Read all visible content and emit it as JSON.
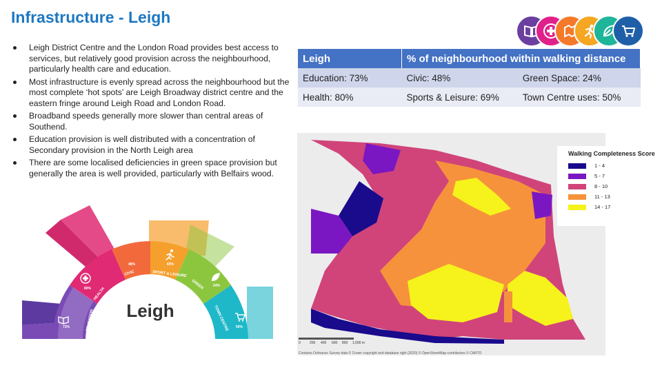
{
  "page": {
    "title": "Infrastructure - Leigh"
  },
  "bullets": [
    "Leigh District Centre and the London Road provides best access to services, but relatively good provision across the neighbourhood, particularly health care and education.",
    "Most infrastructure is evenly spread across the neighbourhood but the most complete ‘hot spots’ are Leigh Broadway district centre and the eastern fringe around Leigh Road and London Road.",
    "Broadband speeds generally more slower than central areas of Southend.",
    "Education provision is well distributed with a concentration of Secondary provision in the North Leigh area",
    "There are some localised deficiencies in green space provision but generally the area is well provided, particularly with Belfairs wood."
  ],
  "icons": [
    {
      "name": "book-icon",
      "color": "#6b3fa0"
    },
    {
      "name": "health-cross-icon",
      "color": "#e0218a"
    },
    {
      "name": "civic-map-icon",
      "color": "#f47a2a"
    },
    {
      "name": "runner-icon",
      "color": "#f5a623"
    },
    {
      "name": "leaf-icon",
      "color": "#1fb59a"
    },
    {
      "name": "cart-icon",
      "color": "#1f5fa8"
    }
  ],
  "table": {
    "headers": [
      "Leigh",
      "% of neighbourhood within walking distance"
    ],
    "rows": [
      [
        "Education:  73%",
        "Civic: 48%",
        "Green Space: 24%"
      ],
      [
        "Health: 80%",
        "Sports & Leisure: 69%",
        "Town Centre uses: 50%"
      ]
    ]
  },
  "legend": {
    "title": "Walking Completeness Score",
    "items": [
      {
        "label": "1 - 4",
        "color": "#1a0a8c"
      },
      {
        "label": "5 - 7",
        "color": "#7b17c2"
      },
      {
        "label": "8 - 10",
        "color": "#d0447a"
      },
      {
        "label": "11 - 13",
        "color": "#f6923c"
      },
      {
        "label": "14 - 17",
        "color": "#f6f21c"
      }
    ]
  },
  "map": {
    "scale_labels": [
      "0",
      "200",
      "400",
      "600",
      "800",
      "1,000 m"
    ],
    "credit": "Contains Ordnance Survey data © Crown copyright and database right (2020) © OpenStreetMap contributors © CARTO"
  },
  "wheel": {
    "center_label": "Leigh",
    "segments": [
      {
        "label": "EDUCATION",
        "value": "73%",
        "color": "#7a4bb5"
      },
      {
        "label": "HEALTH",
        "value": "80%",
        "color": "#e02a73"
      },
      {
        "label": "CIVIC",
        "value": "48%",
        "color": "#f26a3c"
      },
      {
        "label": "SPORT & LEISURE",
        "value": "69%",
        "color": "#f5a02d"
      },
      {
        "label": "GREEN",
        "value": "24%",
        "color": "#8cc63f"
      },
      {
        "label": "TOWN CENTRE",
        "value": "50%",
        "color": "#1fb8c8"
      }
    ]
  }
}
